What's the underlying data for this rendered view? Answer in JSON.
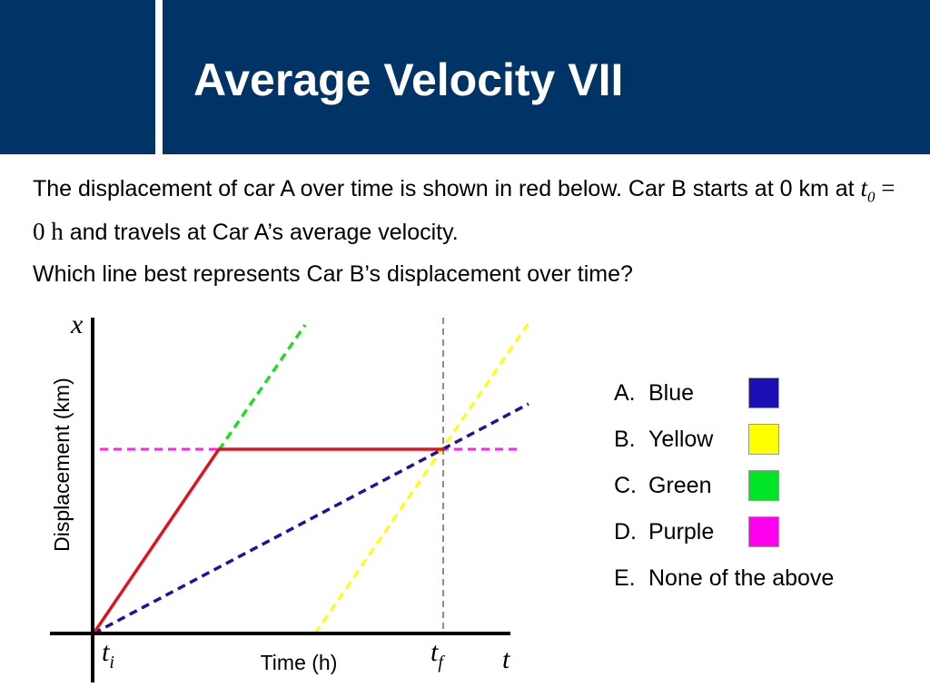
{
  "slide": {
    "title": "Average Velocity VII",
    "paragraph1": {
      "part1": "The displacement of car A over time is shown in red below.  Car B starts at 0 km at ",
      "math_t": "t",
      "math_sub": "0",
      "math_eq": " = 0 h",
      "part2": " and travels at Car A’s average velocity."
    },
    "question": "Which line best represents Car B’s displacement over time?"
  },
  "diagram": {
    "y_axis_symbol": "x",
    "x_axis_symbol": "t",
    "y_axis_label": "Displacement (km)",
    "x_axis_label": "Time (h)",
    "ti_main": "t",
    "ti_sub": "i",
    "tf_main": "t",
    "tf_sub": "f"
  },
  "answers": [
    {
      "letter": "A.",
      "label": "Blue",
      "color": "#1a0fb3"
    },
    {
      "letter": "B.",
      "label": "Yellow",
      "color": "#ffff00"
    },
    {
      "letter": "C.",
      "label": "Green",
      "color": "#00e626"
    },
    {
      "letter": "D.",
      "label": "Purple",
      "color": "#ff00ee"
    },
    {
      "letter": "E.",
      "label": "None of the above",
      "color": ""
    }
  ],
  "colors": {
    "header": "#003366",
    "car_a": "#e0141e",
    "blue_line": "#24109f",
    "yellow_line": "#ffff00",
    "green_line": "#22dd22",
    "purple_line": "#ff22ee",
    "marker_line": "#666666"
  }
}
